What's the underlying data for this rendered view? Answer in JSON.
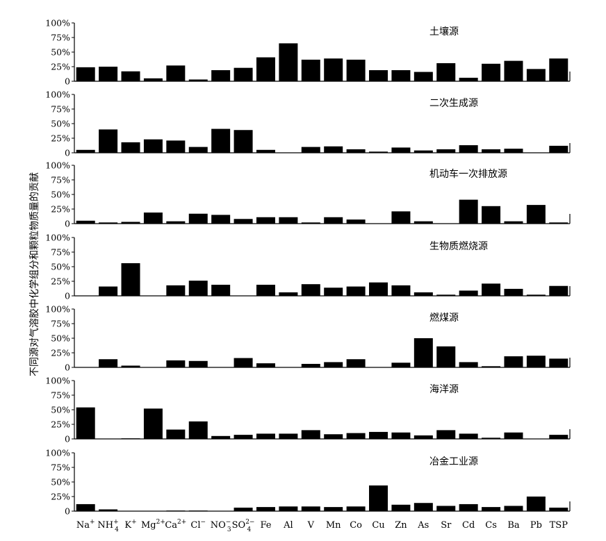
{
  "ylabel": "不同源对气溶胶中化学组分和颗粒物质量的贡献",
  "y_tick_labels": [
    "100%",
    "75%",
    "50%",
    "25%",
    "0"
  ],
  "chart_data": {
    "type": "bar",
    "categories": [
      "Na+",
      "NH4+",
      "K+",
      "Mg2+",
      "Ca2+",
      "Cl−",
      "NO3−",
      "SO42−",
      "Fe",
      "Al",
      "V",
      "Mn",
      "Co",
      "Cu",
      "Zn",
      "As",
      "Sr",
      "Cd",
      "Cs",
      "Ba",
      "Pb",
      "TSP"
    ],
    "category_labels": [
      {
        "base": "Na",
        "sup": "+"
      },
      {
        "base": "NH",
        "sub": "4",
        "sup": "+"
      },
      {
        "base": "K",
        "sup": "+"
      },
      {
        "base": "Mg",
        "sup": "2+"
      },
      {
        "base": "Ca",
        "sup": "2+"
      },
      {
        "base": "Cl",
        "sup": "−"
      },
      {
        "base": "NO",
        "sub": "3",
        "sup": "−"
      },
      {
        "base": "SO",
        "sub": "4",
        "sup": "2−"
      },
      {
        "base": "Fe"
      },
      {
        "base": "Al"
      },
      {
        "base": "V"
      },
      {
        "base": "Mn"
      },
      {
        "base": "Co"
      },
      {
        "base": "Cu"
      },
      {
        "base": "Zn"
      },
      {
        "base": "As"
      },
      {
        "base": "Sr"
      },
      {
        "base": "Cd"
      },
      {
        "base": "Cs"
      },
      {
        "base": "Ba"
      },
      {
        "base": "Pb"
      },
      {
        "base": "TSP"
      }
    ],
    "ylim": [
      0,
      100
    ],
    "series": [
      {
        "name": "土壤源",
        "values": [
          24,
          25,
          17,
          5,
          27,
          3,
          19,
          23,
          41,
          65,
          37,
          39,
          37,
          19,
          19,
          16,
          31,
          6,
          30,
          35,
          21,
          39
        ]
      },
      {
        "name": "二次生成源",
        "values": [
          5,
          40,
          18,
          23,
          21,
          10,
          41,
          39,
          5,
          0,
          10,
          11,
          6,
          2,
          9,
          4,
          6,
          13,
          6,
          7,
          0,
          12
        ]
      },
      {
        "name": "机动车一次排放源",
        "values": [
          5,
          2,
          3,
          19,
          4,
          17,
          15,
          8,
          11,
          11,
          2,
          11,
          7,
          0,
          21,
          4,
          0,
          41,
          30,
          4,
          32,
          2
        ]
      },
      {
        "name": "生物质燃烧源",
        "values": [
          0,
          16,
          56,
          0,
          18,
          26,
          19,
          0,
          19,
          6,
          20,
          14,
          16,
          23,
          18,
          6,
          2,
          9,
          21,
          12,
          2,
          17
        ]
      },
      {
        "name": "燃煤源",
        "values": [
          0,
          14,
          3,
          0,
          12,
          11,
          0,
          16,
          7,
          0,
          6,
          9,
          14,
          0,
          8,
          50,
          36,
          9,
          2,
          19,
          20,
          15
        ]
      },
      {
        "name": "海洋源",
        "values": [
          54,
          0,
          1,
          52,
          16,
          30,
          5,
          7,
          9,
          9,
          15,
          8,
          10,
          12,
          11,
          6,
          15,
          9,
          2,
          11,
          0,
          7
        ]
      },
      {
        "name": "冶金工业源",
        "values": [
          12,
          3,
          0,
          0,
          1,
          1,
          0,
          6,
          7,
          8,
          8,
          7,
          8,
          44,
          11,
          14,
          9,
          12,
          7,
          9,
          25,
          6
        ]
      }
    ]
  }
}
